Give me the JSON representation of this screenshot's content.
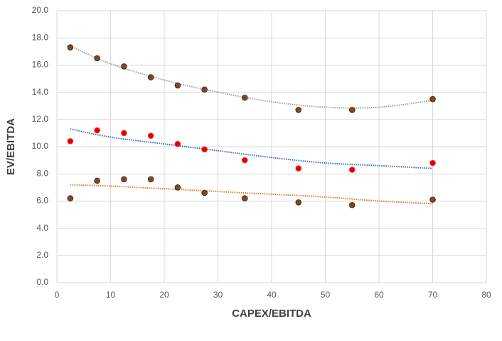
{
  "chart_data": {
    "type": "scatter",
    "x_label": "CAPEX/EBITDA",
    "y_label": "EV/EBITDA",
    "x": [
      2.5,
      7.5,
      12.5,
      17.5,
      22.5,
      27.5,
      35,
      45,
      55,
      70
    ],
    "series": [
      {
        "color": "#7a4a28",
        "values": [
          17.3,
          16.5,
          15.9,
          15.1,
          14.5,
          14.2,
          13.6,
          12.7,
          12.7,
          13.5
        ]
      },
      {
        "color": "#e00000",
        "values": [
          10.4,
          11.2,
          11.0,
          10.8,
          10.2,
          9.8,
          9.0,
          8.4,
          8.3,
          8.8
        ]
      },
      {
        "color": "#7a4a28",
        "values": [
          6.2,
          7.5,
          7.6,
          7.6,
          7.0,
          6.6,
          6.2,
          5.9,
          5.7,
          6.1
        ]
      }
    ],
    "trendlines": [
      {
        "color": "#a0a0a0",
        "x": [
          2.5,
          10,
          20,
          30,
          40,
          50,
          60,
          70
        ],
        "values": [
          17.4,
          16.1,
          14.9,
          14.0,
          13.3,
          12.9,
          12.9,
          13.4
        ]
      },
      {
        "color": "#2e6db4",
        "x": [
          2.5,
          10,
          20,
          30,
          40,
          50,
          60,
          70
        ],
        "values": [
          11.3,
          10.7,
          10.2,
          9.7,
          9.2,
          8.8,
          8.6,
          8.4
        ]
      },
      {
        "color": "#e07b2a",
        "x": [
          2.5,
          10,
          20,
          30,
          40,
          50,
          60,
          70
        ],
        "values": [
          7.2,
          7.1,
          6.9,
          6.7,
          6.5,
          6.3,
          6.0,
          5.8
        ]
      }
    ],
    "xlim": [
      0,
      80
    ],
    "xticks": [
      0,
      10,
      20,
      30,
      40,
      50,
      60,
      70,
      80
    ],
    "ylim": [
      0,
      20
    ],
    "yticks": [
      {
        "value": 0,
        "label": "0.0"
      },
      {
        "value": 2,
        "label": "2.0"
      },
      {
        "value": 4,
        "label": "4.0"
      },
      {
        "value": 6,
        "label": "6.0"
      },
      {
        "value": 8,
        "label": "8.0"
      },
      {
        "value": 10,
        "label": "10.0"
      },
      {
        "value": 12,
        "label": "12.0"
      },
      {
        "value": 14,
        "label": "14.0"
      },
      {
        "value": 16,
        "label": "16.0"
      },
      {
        "value": 18,
        "label": "18.0"
      },
      {
        "value": 20,
        "label": "20.0"
      }
    ],
    "grid": true
  }
}
